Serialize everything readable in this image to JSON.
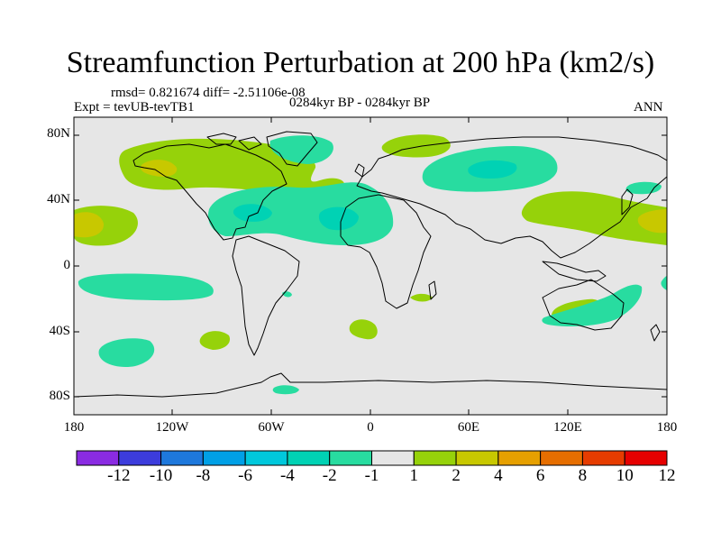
{
  "title": "Streamfunction Perturbation at 200 hPa (km2/s)",
  "stats": "rmsd= 0.821674 diff= -2.51106e-08",
  "experiment": "Expt = tevUB-tevTB1",
  "period": "0284kyr BP - 0284kyr BP",
  "season": "ANN",
  "lat_labels": [
    "80N",
    "40N",
    "0",
    "40S",
    "80S"
  ],
  "lon_labels": [
    "180",
    "120W",
    "60W",
    "0",
    "60E",
    "120E",
    "180"
  ],
  "colorbar": {
    "labels": [
      "-12",
      "-10",
      "-8",
      "-6",
      "-4",
      "-2",
      "-1",
      "1",
      "2",
      "4",
      "6",
      "8",
      "10",
      "12"
    ],
    "colors": [
      "#8a2be2",
      "#3c3cdc",
      "#1e78dc",
      "#00a0e6",
      "#00c8dc",
      "#00d2b4",
      "#28dca0",
      "#e6e6e6",
      "#96d20a",
      "#c8c800",
      "#e6a000",
      "#e66e00",
      "#e63c00",
      "#e60000"
    ]
  },
  "background_color": "#e6e6e6",
  "grid": false
}
